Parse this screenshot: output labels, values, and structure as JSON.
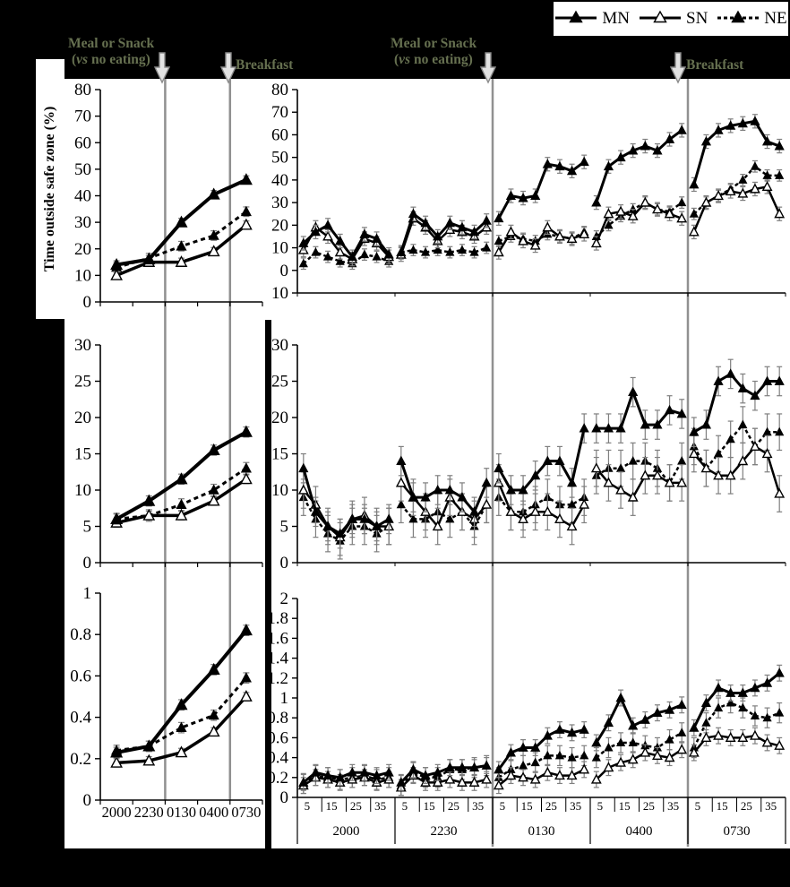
{
  "ylabel": "Time outside safe zone (%)",
  "colors": {
    "background": "#000000",
    "panel": "#ffffff",
    "annotation": "#667050",
    "gridline": "#909090",
    "errorbar": "#7f7f7f",
    "series": "#000000"
  },
  "legend": {
    "items": [
      {
        "label": "MN",
        "marker": "filled-triangle",
        "line": "solid"
      },
      {
        "label": "SN",
        "marker": "open-triangle",
        "line": "solid"
      },
      {
        "label": "NE",
        "marker": "filled-triangle",
        "line": "dashed"
      }
    ]
  },
  "annotations": {
    "left": {
      "meal_line1": "Meal or Snack",
      "meal_open": "(",
      "meal_vs": "vs",
      "meal_rest": " no eating)",
      "breakfast": "Breakfast"
    },
    "right": {
      "meal_line1": "Meal or Snack",
      "meal_open": "(",
      "meal_vs": "vs",
      "meal_rest": " no eating)",
      "breakfast": "Breakfast"
    }
  },
  "chart_data": [
    {
      "id": "top-left",
      "type": "line",
      "categories": [
        "2000",
        "2230",
        "0130",
        "0400",
        "0730"
      ],
      "show_x_labels": false,
      "ylim": [
        0,
        80
      ],
      "yticks": [
        80,
        70,
        60,
        50,
        40,
        30,
        20,
        10,
        0
      ],
      "ytick_labels": [
        "80",
        "70",
        "60",
        "50",
        "40",
        "30",
        "20",
        "10",
        "0"
      ],
      "vline_boundaries": [
        2,
        4
      ],
      "series": [
        {
          "name": "MN",
          "err": 1.5,
          "values": [
            14,
            16,
            30,
            40.5,
            46
          ]
        },
        {
          "name": "SN",
          "err": 1.5,
          "values": [
            10,
            15,
            15,
            19,
            29
          ]
        },
        {
          "name": "NE",
          "err": 1.8,
          "values": [
            13,
            16.5,
            21,
            25,
            34
          ]
        }
      ]
    },
    {
      "id": "top-right",
      "type": "line",
      "block_labels": [
        "2000",
        "2230",
        "0130",
        "0400",
        "0730"
      ],
      "points_per_block": 8,
      "minute_labels": [
        "5",
        "15",
        "25",
        "35"
      ],
      "show_x_labels": false,
      "ylim": [
        -10,
        80
      ],
      "yticks": [
        80,
        70,
        60,
        50,
        40,
        30,
        20,
        10,
        0,
        -10
      ],
      "ytick_labels": [
        "80",
        "70",
        "60",
        "50",
        "40",
        "30",
        "20",
        "10",
        "0",
        "10"
      ],
      "vline_boundaries": [
        2,
        4
      ],
      "series": [
        {
          "name": "MN",
          "err": 3,
          "values": [
            12,
            17,
            20,
            13,
            6,
            16,
            14,
            7,
            8,
            25,
            21,
            15,
            21,
            19,
            17,
            22,
            23,
            33,
            32,
            33,
            47,
            46,
            44,
            48,
            30,
            46,
            50,
            53,
            55,
            53,
            58,
            62,
            38,
            57,
            62,
            64,
            65,
            66,
            57,
            55
          ]
        },
        {
          "name": "SN",
          "err": 3,
          "values": [
            9,
            19,
            15,
            8,
            5,
            14,
            12,
            6,
            7,
            23,
            19,
            13,
            18,
            17,
            15,
            19,
            8,
            17,
            13,
            11,
            19,
            15,
            14,
            16,
            12,
            25,
            26,
            24,
            30,
            27,
            25,
            23,
            17,
            30,
            33,
            35,
            34,
            36,
            37,
            25
          ]
        },
        {
          "name": "NE",
          "err": 2.5,
          "values": [
            3,
            8,
            6,
            4,
            3,
            7,
            6,
            4,
            8,
            9,
            8,
            9,
            8,
            9,
            8,
            10,
            13,
            15,
            14,
            13,
            16,
            15,
            14,
            17,
            15,
            20,
            24,
            27,
            30,
            27,
            26,
            30,
            25,
            30,
            33,
            36,
            40,
            46,
            42,
            42
          ]
        }
      ]
    },
    {
      "id": "middle-left",
      "type": "line",
      "categories": [
        "2000",
        "2230",
        "0130",
        "0400",
        "0730"
      ],
      "show_x_labels": false,
      "ylim": [
        0,
        30
      ],
      "yticks": [
        30,
        25,
        20,
        15,
        10,
        5,
        0
      ],
      "ytick_labels": [
        "30",
        "25",
        "20",
        "15",
        "10",
        "5",
        "0"
      ],
      "vline_boundaries": [
        2,
        4
      ],
      "series": [
        {
          "name": "MN",
          "err": 0.7,
          "values": [
            6,
            8.5,
            11.5,
            15.5,
            18
          ]
        },
        {
          "name": "SN",
          "err": 0.6,
          "values": [
            5.5,
            6.5,
            6.5,
            8.5,
            11.5
          ]
        },
        {
          "name": "NE",
          "err": 0.8,
          "values": [
            6,
            6.5,
            8,
            10,
            13
          ]
        }
      ]
    },
    {
      "id": "middle-right",
      "type": "line",
      "block_labels": [
        "2000",
        "2230",
        "0130",
        "0400",
        "0730"
      ],
      "points_per_block": 8,
      "minute_labels": [
        "5",
        "15",
        "25",
        "35"
      ],
      "show_x_labels": false,
      "ylim": [
        0,
        30
      ],
      "yticks": [
        30,
        25,
        20,
        15,
        10,
        5,
        0
      ],
      "ytick_labels": [
        "30",
        "25",
        "20",
        "15",
        "10",
        "5",
        "0"
      ],
      "vline_boundaries": [
        2,
        4
      ],
      "series": [
        {
          "name": "MN",
          "err": 2,
          "values": [
            13,
            7,
            5,
            4,
            6,
            6,
            5,
            6,
            14,
            9,
            9,
            10,
            10,
            9,
            7,
            11,
            13,
            10,
            10,
            12,
            14,
            14,
            11,
            18.5,
            18.5,
            18.5,
            18.5,
            23.5,
            19,
            19,
            21,
            20.5,
            18,
            19,
            25,
            26,
            24,
            23,
            25,
            25
          ]
        },
        {
          "name": "SN",
          "err": 2.5,
          "values": [
            10,
            8,
            5,
            3.5,
            6,
            6.5,
            5,
            5,
            11,
            9,
            7,
            5,
            9,
            7,
            6,
            8,
            11,
            7,
            6,
            7,
            7,
            6,
            5,
            8,
            13,
            11,
            10,
            9,
            12,
            12,
            11,
            11,
            15,
            13,
            12,
            12,
            14,
            16,
            15,
            9.5
          ]
        },
        {
          "name": "NE",
          "err": 2.5,
          "values": [
            9,
            6,
            4,
            3,
            5,
            5,
            4,
            5,
            8,
            6,
            6,
            7,
            6,
            7,
            5,
            8,
            9,
            7,
            7,
            8,
            9,
            8,
            8,
            9,
            12,
            13,
            13,
            14,
            14,
            13,
            11,
            14,
            16,
            13,
            15,
            17,
            19,
            16,
            18,
            18
          ]
        }
      ]
    },
    {
      "id": "bottom-left",
      "type": "line",
      "categories": [
        "2000",
        "2230",
        "0130",
        "0400",
        "0730"
      ],
      "show_x_labels": true,
      "ylim": [
        0,
        1
      ],
      "yticks": [
        1,
        0.8,
        0.6,
        0.4,
        0.2,
        0
      ],
      "ytick_labels": [
        "1",
        "0.8",
        "0.6",
        "0.4",
        "0.2",
        "0"
      ],
      "vline_boundaries": [
        2,
        4
      ],
      "series": [
        {
          "name": "MN",
          "err": 0.025,
          "values": [
            0.23,
            0.26,
            0.46,
            0.63,
            0.82
          ]
        },
        {
          "name": "SN",
          "err": 0.02,
          "values": [
            0.18,
            0.19,
            0.23,
            0.33,
            0.5
          ]
        },
        {
          "name": "NE",
          "err": 0.025,
          "values": [
            0.24,
            0.26,
            0.35,
            0.41,
            0.59
          ]
        }
      ]
    },
    {
      "id": "bottom-right",
      "type": "line",
      "block_labels": [
        "2000",
        "2230",
        "0130",
        "0400",
        "0730"
      ],
      "points_per_block": 8,
      "minute_labels": [
        "5",
        "15",
        "25",
        "35"
      ],
      "show_x_labels": true,
      "ylim": [
        0,
        2
      ],
      "yticks": [
        2,
        1.8,
        1.6,
        1.4,
        1.2,
        1,
        0.8,
        0.6,
        0.4,
        0.2,
        0
      ],
      "ytick_labels": [
        "2",
        "1.8",
        "1.6",
        "1.4",
        "1.2",
        "1",
        "0.8",
        "0.6",
        "0.4",
        "0.2",
        "0"
      ],
      "vline_boundaries": [
        2,
        4
      ],
      "series": [
        {
          "name": "MN",
          "err": 0.08,
          "values": [
            0.15,
            0.25,
            0.22,
            0.2,
            0.25,
            0.25,
            0.22,
            0.25,
            0.15,
            0.28,
            0.22,
            0.25,
            0.3,
            0.3,
            0.3,
            0.32,
            0.28,
            0.45,
            0.5,
            0.5,
            0.62,
            0.68,
            0.65,
            0.68,
            0.55,
            0.75,
            1.0,
            0.72,
            0.78,
            0.85,
            0.88,
            0.93,
            0.7,
            0.95,
            1.1,
            1.05,
            1.05,
            1.1,
            1.15,
            1.25
          ]
        },
        {
          "name": "SN",
          "err": 0.08,
          "values": [
            0.12,
            0.2,
            0.18,
            0.15,
            0.18,
            0.2,
            0.15,
            0.18,
            0.1,
            0.22,
            0.15,
            0.15,
            0.18,
            0.15,
            0.15,
            0.18,
            0.12,
            0.22,
            0.2,
            0.18,
            0.25,
            0.22,
            0.22,
            0.28,
            0.18,
            0.3,
            0.35,
            0.38,
            0.45,
            0.42,
            0.4,
            0.48,
            0.45,
            0.6,
            0.62,
            0.6,
            0.6,
            0.62,
            0.55,
            0.52
          ]
        },
        {
          "name": "NE",
          "err": 0.1,
          "values": [
            0.14,
            0.22,
            0.2,
            0.18,
            0.2,
            0.22,
            0.18,
            0.2,
            0.12,
            0.25,
            0.2,
            0.2,
            0.28,
            0.28,
            0.3,
            0.32,
            0.2,
            0.28,
            0.32,
            0.35,
            0.42,
            0.42,
            0.4,
            0.42,
            0.4,
            0.5,
            0.55,
            0.55,
            0.52,
            0.5,
            0.58,
            0.65,
            0.5,
            0.75,
            0.9,
            0.95,
            0.9,
            0.82,
            0.8,
            0.85
          ]
        }
      ]
    }
  ]
}
